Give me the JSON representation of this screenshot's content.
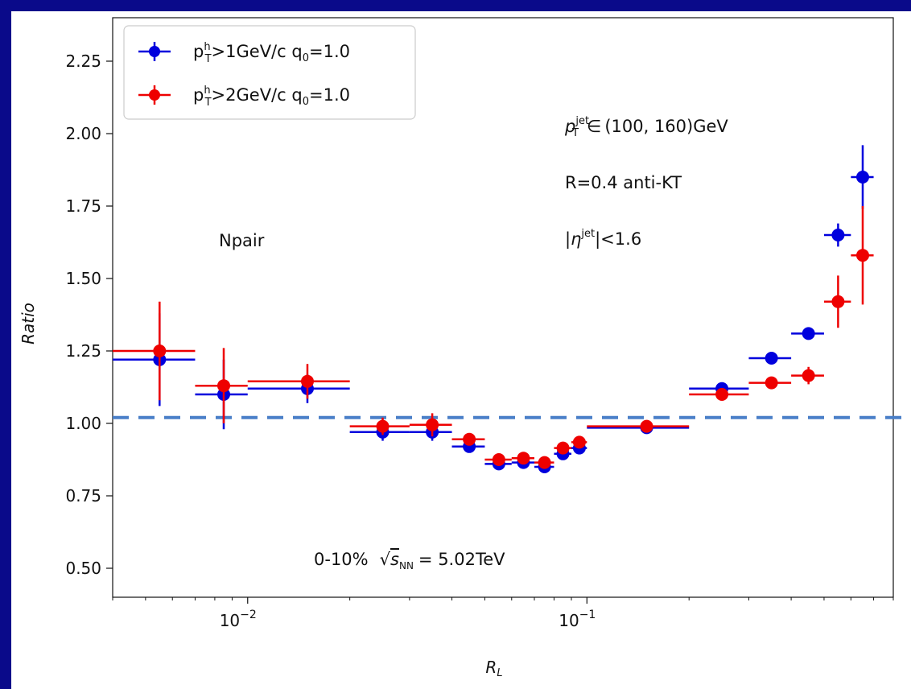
{
  "chart_data": {
    "type": "scatter",
    "xscale": "log",
    "xlim": [
      0.004,
      0.8
    ],
    "ylim": [
      0.4,
      2.4
    ],
    "xlabel": "R_L",
    "ylabel": "Ratio",
    "xticks": [
      {
        "value": 0.01,
        "label_base": "10",
        "label_exp": "−2"
      },
      {
        "value": 0.1,
        "label_base": "10",
        "label_exp": "−1"
      }
    ],
    "yticks": [
      0.5,
      0.75,
      1.0,
      1.25,
      1.5,
      1.75,
      2.0,
      2.25
    ],
    "ytick_labels": [
      "0.50",
      "0.75",
      "1.00",
      "1.25",
      "1.50",
      "1.75",
      "2.00",
      "2.25"
    ],
    "reference_line": {
      "y": 1.02,
      "color": "#4a7fc8"
    },
    "legend": {
      "position": "top-left"
    },
    "series": [
      {
        "name": "p_T^h>1GeV/c  q_0=1.0",
        "color": "#0000dd",
        "points": [
          {
            "x": 0.0055,
            "xlo": 0.004,
            "xhi": 0.007,
            "y": 1.22,
            "yerr": 0.16
          },
          {
            "x": 0.0085,
            "xlo": 0.007,
            "xhi": 0.01,
            "y": 1.1,
            "yerr": 0.12
          },
          {
            "x": 0.015,
            "xlo": 0.01,
            "xhi": 0.02,
            "y": 1.12,
            "yerr": 0.05
          },
          {
            "x": 0.025,
            "xlo": 0.02,
            "xhi": 0.03,
            "y": 0.97,
            "yerr": 0.03
          },
          {
            "x": 0.035,
            "xlo": 0.03,
            "xhi": 0.04,
            "y": 0.97,
            "yerr": 0.03
          },
          {
            "x": 0.045,
            "xlo": 0.04,
            "xhi": 0.05,
            "y": 0.92,
            "yerr": 0.02
          },
          {
            "x": 0.055,
            "xlo": 0.05,
            "xhi": 0.06,
            "y": 0.86,
            "yerr": 0.02
          },
          {
            "x": 0.065,
            "xlo": 0.06,
            "xhi": 0.07,
            "y": 0.865,
            "yerr": 0.02
          },
          {
            "x": 0.075,
            "xlo": 0.07,
            "xhi": 0.08,
            "y": 0.85,
            "yerr": 0.02
          },
          {
            "x": 0.085,
            "xlo": 0.08,
            "xhi": 0.09,
            "y": 0.895,
            "yerr": 0.02
          },
          {
            "x": 0.095,
            "xlo": 0.09,
            "xhi": 0.1,
            "y": 0.915,
            "yerr": 0.02
          },
          {
            "x": 0.15,
            "xlo": 0.1,
            "xhi": 0.2,
            "y": 0.985,
            "yerr": 0.01
          },
          {
            "x": 0.25,
            "xlo": 0.2,
            "xhi": 0.3,
            "y": 1.12,
            "yerr": 0.01
          },
          {
            "x": 0.35,
            "xlo": 0.3,
            "xhi": 0.4,
            "y": 1.225,
            "yerr": 0.01
          },
          {
            "x": 0.45,
            "xlo": 0.4,
            "xhi": 0.5,
            "y": 1.31,
            "yerr": 0.015
          },
          {
            "x": 0.55,
            "xlo": 0.5,
            "xhi": 0.6,
            "y": 1.65,
            "yerr": 0.04
          },
          {
            "x": 0.65,
            "xlo": 0.6,
            "xhi": 0.7,
            "y": 1.85,
            "yerr": 0.11
          }
        ]
      },
      {
        "name": "p_T^h>2GeV/c  q_0=1.0",
        "color": "#ee0000",
        "points": [
          {
            "x": 0.0055,
            "xlo": 0.004,
            "xhi": 0.007,
            "y": 1.25,
            "yerr": 0.17
          },
          {
            "x": 0.0085,
            "xlo": 0.007,
            "xhi": 0.01,
            "y": 1.13,
            "yerr": 0.13
          },
          {
            "x": 0.015,
            "xlo": 0.01,
            "xhi": 0.02,
            "y": 1.145,
            "yerr": 0.06
          },
          {
            "x": 0.025,
            "xlo": 0.02,
            "xhi": 0.03,
            "y": 0.99,
            "yerr": 0.03
          },
          {
            "x": 0.035,
            "xlo": 0.03,
            "xhi": 0.04,
            "y": 0.995,
            "yerr": 0.04
          },
          {
            "x": 0.045,
            "xlo": 0.04,
            "xhi": 0.05,
            "y": 0.945,
            "yerr": 0.02
          },
          {
            "x": 0.055,
            "xlo": 0.05,
            "xhi": 0.06,
            "y": 0.875,
            "yerr": 0.02
          },
          {
            "x": 0.065,
            "xlo": 0.06,
            "xhi": 0.07,
            "y": 0.88,
            "yerr": 0.02
          },
          {
            "x": 0.075,
            "xlo": 0.07,
            "xhi": 0.08,
            "y": 0.865,
            "yerr": 0.02
          },
          {
            "x": 0.085,
            "xlo": 0.08,
            "xhi": 0.09,
            "y": 0.915,
            "yerr": 0.02
          },
          {
            "x": 0.095,
            "xlo": 0.09,
            "xhi": 0.1,
            "y": 0.935,
            "yerr": 0.02
          },
          {
            "x": 0.15,
            "xlo": 0.1,
            "xhi": 0.2,
            "y": 0.99,
            "yerr": 0.01
          },
          {
            "x": 0.25,
            "xlo": 0.2,
            "xhi": 0.3,
            "y": 1.1,
            "yerr": 0.01
          },
          {
            "x": 0.35,
            "xlo": 0.3,
            "xhi": 0.4,
            "y": 1.14,
            "yerr": 0.01
          },
          {
            "x": 0.45,
            "xlo": 0.4,
            "xhi": 0.5,
            "y": 1.165,
            "yerr": 0.03
          },
          {
            "x": 0.55,
            "xlo": 0.5,
            "xhi": 0.6,
            "y": 1.42,
            "yerr": 0.09
          },
          {
            "x": 0.65,
            "xlo": 0.6,
            "xhi": 0.7,
            "y": 1.58,
            "yerr": 0.17
          }
        ]
      }
    ],
    "annotations": {
      "ptjet": "(100, 160)GeV",
      "radius": "R=0.4  anti-KT",
      "eta": "|<1.6",
      "label": "Npair",
      "centrality": "0-10%",
      "energy": "= 5.02TeV"
    }
  }
}
